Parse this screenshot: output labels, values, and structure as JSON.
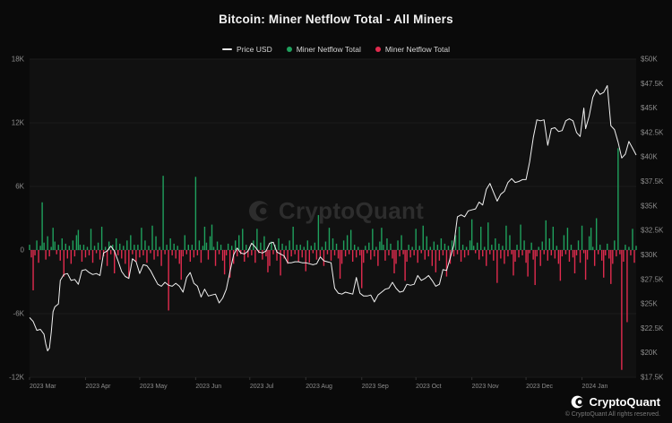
{
  "header": {
    "title": "Bitcoin: Miner Netflow Total - All Miners"
  },
  "legend": [
    {
      "label": "Price USD",
      "type": "line",
      "color": "#e8e8e8"
    },
    {
      "label": "Miner Netflow Total",
      "type": "dot",
      "color": "#1fa15d"
    },
    {
      "label": "Miner Netflow Total",
      "type": "dot",
      "color": "#e12b4e"
    }
  ],
  "watermark": {
    "text": "CryptoQuant"
  },
  "footer": {
    "brand": "CryptoQuant",
    "copyright": "© CryptoQuant All rights reserved."
  },
  "colors": {
    "background": "#0a0a0a",
    "plot_background": "#111111",
    "grid": "#1c1c1c",
    "zero_line": "#262626",
    "tick_text": "#8d8d8d",
    "price_line": "#f2f2f2",
    "netflow_positive": "#1fa15d",
    "netflow_negative": "#e12b4e",
    "watermark": "#2d2d2d"
  },
  "chart_data": {
    "type": "bar",
    "title": "Bitcoin: Miner Netflow Total - All Miners",
    "grid": true,
    "legend_position": "top",
    "x_axis": {
      "labels": [
        "2023 Mar",
        "2023 Apr",
        "2023 May",
        "2023 Jun",
        "2023 Jul",
        "2023 Aug",
        "2023 Sep",
        "2023 Oct",
        "2023 Nov",
        "2023 Dec",
        "2024 Jan"
      ],
      "label_days": [
        0,
        31,
        61,
        92,
        122,
        153,
        184,
        214,
        245,
        275,
        306
      ],
      "total_days": 337
    },
    "left_axis": {
      "series": "Miner Netflow Total",
      "ticks": [
        "18K",
        "12K",
        "6K",
        "0",
        "-6K",
        "-12K"
      ],
      "tick_values": [
        18,
        12,
        6,
        0,
        -6,
        -12
      ],
      "range": [
        -12,
        18
      ],
      "unit": "K BTC"
    },
    "right_axis": {
      "series": "Price USD",
      "ticks": [
        "$50K",
        "$47.5K",
        "$45K",
        "$42.5K",
        "$40K",
        "$37.5K",
        "$35K",
        "$32.5K",
        "$30K",
        "$27.5K",
        "$25K",
        "$22.5K",
        "$20K",
        "$17.5K"
      ],
      "tick_values": [
        50,
        47.5,
        45,
        42.5,
        40,
        37.5,
        35,
        32.5,
        30,
        27.5,
        25,
        22.5,
        20,
        17.5
      ],
      "range": [
        17.5,
        50
      ],
      "unit": "$K"
    },
    "price_line": {
      "name": "Price USD",
      "points": [
        [
          0,
          23.6
        ],
        [
          2,
          23.2
        ],
        [
          4,
          22.3
        ],
        [
          6,
          22.4
        ],
        [
          8,
          21.9
        ],
        [
          9,
          20.9
        ],
        [
          10,
          20.2
        ],
        [
          11,
          20.5
        ],
        [
          12,
          22.1
        ],
        [
          13,
          24.2
        ],
        [
          14,
          24.7
        ],
        [
          16,
          25.0
        ],
        [
          17,
          27.4
        ],
        [
          19,
          28.0
        ],
        [
          21,
          28.1
        ],
        [
          23,
          27.4
        ],
        [
          25,
          27.5
        ],
        [
          27,
          27.0
        ],
        [
          29,
          28.4
        ],
        [
          31,
          28.5
        ],
        [
          33,
          28.2
        ],
        [
          35,
          28.0
        ],
        [
          37,
          28.1
        ],
        [
          39,
          27.9
        ],
        [
          41,
          30.2
        ],
        [
          43,
          30.4
        ],
        [
          45,
          30.9
        ],
        [
          47,
          30.4
        ],
        [
          49,
          29.4
        ],
        [
          51,
          28.3
        ],
        [
          53,
          27.8
        ],
        [
          55,
          27.6
        ],
        [
          57,
          29.6
        ],
        [
          59,
          29.3
        ],
        [
          61,
          28.1
        ],
        [
          63,
          29.0
        ],
        [
          65,
          28.9
        ],
        [
          67,
          28.4
        ],
        [
          69,
          27.7
        ],
        [
          71,
          27.0
        ],
        [
          73,
          26.8
        ],
        [
          75,
          27.2
        ],
        [
          77,
          26.9
        ],
        [
          79,
          26.8
        ],
        [
          81,
          27.1
        ],
        [
          83,
          26.8
        ],
        [
          85,
          26.2
        ],
        [
          87,
          27.7
        ],
        [
          89,
          28.2
        ],
        [
          91,
          27.1
        ],
        [
          93,
          26.8
        ],
        [
          95,
          25.7
        ],
        [
          97,
          26.5
        ],
        [
          99,
          25.8
        ],
        [
          101,
          25.9
        ],
        [
          103,
          26.0
        ],
        [
          105,
          25.1
        ],
        [
          107,
          25.6
        ],
        [
          109,
          26.5
        ],
        [
          111,
          28.3
        ],
        [
          113,
          30.0
        ],
        [
          115,
          30.7
        ],
        [
          117,
          30.2
        ],
        [
          119,
          30.1
        ],
        [
          121,
          30.4
        ],
        [
          123,
          31.2
        ],
        [
          125,
          30.8
        ],
        [
          127,
          30.3
        ],
        [
          129,
          30.2
        ],
        [
          131,
          30.4
        ],
        [
          133,
          31.2
        ],
        [
          135,
          31.3
        ],
        [
          137,
          30.3
        ],
        [
          139,
          30.1
        ],
        [
          141,
          29.9
        ],
        [
          143,
          29.2
        ],
        [
          145,
          29.2
        ],
        [
          147,
          29.3
        ],
        [
          149,
          29.3
        ],
        [
          151,
          29.2
        ],
        [
          153,
          29.2
        ],
        [
          155,
          29.1
        ],
        [
          157,
          29.0
        ],
        [
          159,
          29.1
        ],
        [
          161,
          29.8
        ],
        [
          163,
          29.4
        ],
        [
          165,
          29.3
        ],
        [
          167,
          29.2
        ],
        [
          169,
          26.6
        ],
        [
          171,
          26.1
        ],
        [
          173,
          26.0
        ],
        [
          175,
          26.2
        ],
        [
          177,
          26.1
        ],
        [
          179,
          26.0
        ],
        [
          181,
          27.7
        ],
        [
          183,
          26.1
        ],
        [
          185,
          25.8
        ],
        [
          187,
          25.8
        ],
        [
          189,
          25.9
        ],
        [
          191,
          25.2
        ],
        [
          193,
          25.9
        ],
        [
          195,
          26.2
        ],
        [
          197,
          26.5
        ],
        [
          199,
          26.6
        ],
        [
          201,
          27.2
        ],
        [
          203,
          26.6
        ],
        [
          205,
          26.2
        ],
        [
          207,
          26.3
        ],
        [
          209,
          27.0
        ],
        [
          211,
          26.9
        ],
        [
          213,
          27.0
        ],
        [
          215,
          27.9
        ],
        [
          217,
          27.4
        ],
        [
          219,
          27.6
        ],
        [
          221,
          27.9
        ],
        [
          223,
          27.4
        ],
        [
          225,
          26.8
        ],
        [
          227,
          27.0
        ],
        [
          229,
          28.5
        ],
        [
          231,
          28.4
        ],
        [
          233,
          29.7
        ],
        [
          235,
          31.0
        ],
        [
          237,
          33.9
        ],
        [
          239,
          34.1
        ],
        [
          241,
          33.9
        ],
        [
          243,
          34.5
        ],
        [
          245,
          34.6
        ],
        [
          247,
          34.7
        ],
        [
          249,
          35.4
        ],
        [
          251,
          35.1
        ],
        [
          253,
          36.7
        ],
        [
          255,
          37.3
        ],
        [
          257,
          36.4
        ],
        [
          259,
          35.5
        ],
        [
          261,
          36.2
        ],
        [
          263,
          36.5
        ],
        [
          265,
          37.4
        ],
        [
          267,
          37.8
        ],
        [
          269,
          37.4
        ],
        [
          271,
          37.5
        ],
        [
          273,
          37.7
        ],
        [
          275,
          37.7
        ],
        [
          277,
          39.5
        ],
        [
          279,
          42.0
        ],
        [
          281,
          43.8
        ],
        [
          283,
          43.7
        ],
        [
          285,
          43.8
        ],
        [
          287,
          41.2
        ],
        [
          289,
          42.9
        ],
        [
          291,
          43.0
        ],
        [
          293,
          42.6
        ],
        [
          295,
          42.7
        ],
        [
          297,
          43.7
        ],
        [
          299,
          43.9
        ],
        [
          301,
          43.7
        ],
        [
          303,
          42.5
        ],
        [
          305,
          42.1
        ],
        [
          307,
          45.0
        ],
        [
          308,
          42.9
        ],
        [
          310,
          44.2
        ],
        [
          312,
          46.1
        ],
        [
          314,
          46.9
        ],
        [
          316,
          46.4
        ],
        [
          318,
          46.6
        ],
        [
          320,
          47.3
        ],
        [
          322,
          43.2
        ],
        [
          324,
          42.8
        ],
        [
          326,
          41.5
        ],
        [
          328,
          39.9
        ],
        [
          330,
          40.3
        ],
        [
          332,
          41.6
        ],
        [
          334,
          40.9
        ],
        [
          336,
          40.2
        ]
      ]
    },
    "netflow_bars": {
      "name": "Miner Netflow Total",
      "positive_color": "#1fa15d",
      "negative_color": "#e12b4e",
      "baseline_pattern": [
        0.5,
        -0.7,
        0.3,
        -0.5,
        0.9,
        -1.2,
        0.4,
        -0.3,
        0.7,
        -0.9,
        1.3,
        -0.6,
        0.3,
        -1.5,
        0.8,
        -0.4,
        0.5,
        -1.0,
        1.1,
        -0.5,
        0.6,
        -0.8,
        0.4,
        -1.3,
        0.9,
        -0.6,
        1.4,
        -0.4,
        0.5,
        -1.1
      ],
      "spikes": [
        [
          2,
          -3.8
        ],
        [
          7,
          4.5
        ],
        [
          13,
          2.1
        ],
        [
          19,
          -2.5
        ],
        [
          27,
          1.9
        ],
        [
          34,
          2.0
        ],
        [
          40,
          2.2
        ],
        [
          47,
          -2.2
        ],
        [
          55,
          -2.6
        ],
        [
          62,
          2.1
        ],
        [
          68,
          2.3
        ],
        [
          74,
          7.0
        ],
        [
          77,
          -5.7
        ],
        [
          84,
          -2.8
        ],
        [
          92,
          6.9
        ],
        [
          97,
          2.2
        ],
        [
          101,
          2.4
        ],
        [
          108,
          -2.3
        ],
        [
          111,
          -2.6
        ],
        [
          118,
          2.0
        ],
        [
          126,
          2.0
        ],
        [
          132,
          -2.1
        ],
        [
          139,
          -2.4
        ],
        [
          146,
          2.2
        ],
        [
          153,
          -2.0
        ],
        [
          160,
          3.3
        ],
        [
          166,
          2.1
        ],
        [
          172,
          -2.7
        ],
        [
          178,
          1.9
        ],
        [
          184,
          -3.6
        ],
        [
          190,
          2.0
        ],
        [
          195,
          2.1
        ],
        [
          202,
          -2.2
        ],
        [
          208,
          -2.9
        ],
        [
          214,
          2.0
        ],
        [
          218,
          2.3
        ],
        [
          225,
          -2.1
        ],
        [
          231,
          -2.5
        ],
        [
          238,
          2.2
        ],
        [
          245,
          2.9
        ],
        [
          250,
          2.2
        ],
        [
          254,
          2.6
        ],
        [
          259,
          -3.1
        ],
        [
          264,
          2.3
        ],
        [
          268,
          -2.4
        ],
        [
          272,
          2.4
        ],
        [
          276,
          -2.5
        ],
        [
          280,
          -3.3
        ],
        [
          286,
          2.8
        ],
        [
          290,
          2.2
        ],
        [
          294,
          -2.9
        ],
        [
          298,
          2.1
        ],
        [
          302,
          -2.2
        ],
        [
          306,
          2.3
        ],
        [
          308,
          -2.8
        ],
        [
          311,
          2.1
        ],
        [
          314,
          3.0
        ],
        [
          318,
          -2.6
        ],
        [
          322,
          -3.2
        ],
        [
          326,
          9.6
        ],
        [
          328,
          -11.3
        ],
        [
          331,
          -6.8
        ],
        [
          334,
          2.0
        ]
      ]
    }
  }
}
